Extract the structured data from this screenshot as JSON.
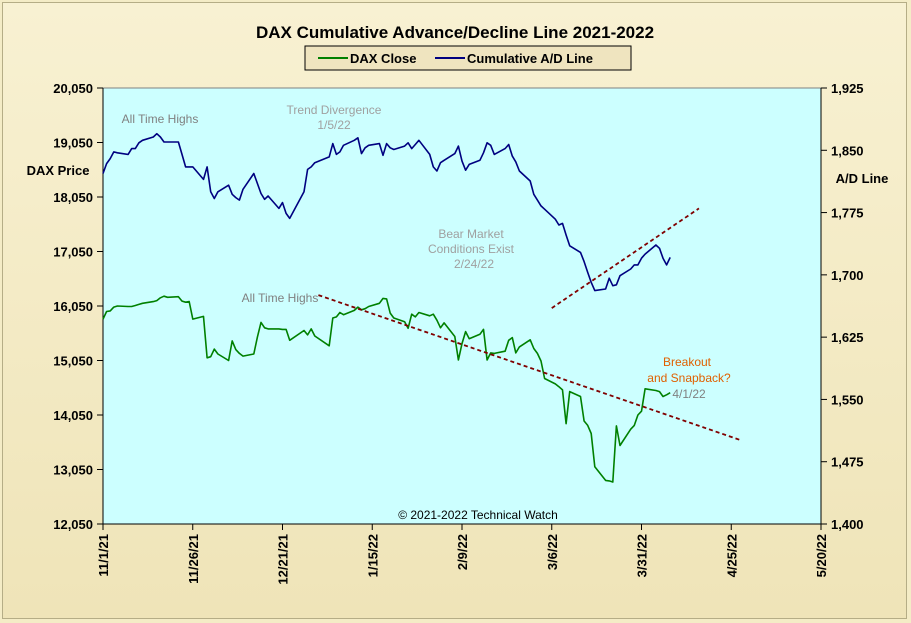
{
  "chart_data": {
    "type": "line",
    "title": "DAX Cumulative Advance/Decline Line 2021-2022",
    "ylabel_left": "DAX Price",
    "ylabel_right": "A/D Line",
    "ylim_left": [
      12050,
      20050
    ],
    "ylim_right": [
      1400,
      1925
    ],
    "yticks_left": [
      "20,050",
      "19,050",
      "18,050",
      "17,050",
      "16,050",
      "15,050",
      "14,050",
      "13,050",
      "12,050"
    ],
    "yticks_right": [
      "1,925",
      "1,850",
      "1,775",
      "1,700",
      "1,625",
      "1,550",
      "1,475",
      "1,400"
    ],
    "xticks": [
      "11/1/21",
      "11/26/21",
      "12/21/21",
      "1/15/22",
      "2/9/22",
      "3/6/22",
      "3/31/22",
      "4/25/22",
      "5/20/22"
    ],
    "grid": false,
    "legend_position": "top-center",
    "plot_background": "#ccffff",
    "series": [
      {
        "name": "DAX Close",
        "axis": "left",
        "color": "#008000",
        "x": [
          "2021-11-01",
          "2021-11-02",
          "2021-11-03",
          "2021-11-04",
          "2021-11-05",
          "2021-11-08",
          "2021-11-09",
          "2021-11-10",
          "2021-11-11",
          "2021-11-12",
          "2021-11-15",
          "2021-11-16",
          "2021-11-17",
          "2021-11-18",
          "2021-11-19",
          "2021-11-22",
          "2021-11-23",
          "2021-11-24",
          "2021-11-25",
          "2021-11-26",
          "2021-11-29",
          "2021-11-30",
          "2021-12-01",
          "2021-12-02",
          "2021-12-03",
          "2021-12-06",
          "2021-12-07",
          "2021-12-08",
          "2021-12-09",
          "2021-12-10",
          "2021-12-13",
          "2021-12-14",
          "2021-12-15",
          "2021-12-16",
          "2021-12-17",
          "2021-12-20",
          "2021-12-21",
          "2021-12-22",
          "2021-12-23",
          "2021-12-27",
          "2021-12-28",
          "2021-12-29",
          "2021-12-30",
          "2022-01-03",
          "2022-01-04",
          "2022-01-05",
          "2022-01-06",
          "2022-01-07",
          "2022-01-10",
          "2022-01-11",
          "2022-01-12",
          "2022-01-13",
          "2022-01-14",
          "2022-01-17",
          "2022-01-18",
          "2022-01-19",
          "2022-01-20",
          "2022-01-21",
          "2022-01-24",
          "2022-01-25",
          "2022-01-26",
          "2022-01-27",
          "2022-01-28",
          "2022-01-31",
          "2022-02-01",
          "2022-02-02",
          "2022-02-03",
          "2022-02-04",
          "2022-02-07",
          "2022-02-08",
          "2022-02-09",
          "2022-02-10",
          "2022-02-11",
          "2022-02-14",
          "2022-02-15",
          "2022-02-16",
          "2022-02-17",
          "2022-02-18",
          "2022-02-21",
          "2022-02-22",
          "2022-02-23",
          "2022-02-24",
          "2022-02-25",
          "2022-02-28",
          "2022-03-01",
          "2022-03-02",
          "2022-03-03",
          "2022-03-04",
          "2022-03-07",
          "2022-03-08",
          "2022-03-09",
          "2022-03-10",
          "2022-03-11",
          "2022-03-14",
          "2022-03-15",
          "2022-03-16",
          "2022-03-17",
          "2022-03-18",
          "2022-03-21",
          "2022-03-22",
          "2022-03-23",
          "2022-03-24",
          "2022-03-25",
          "2022-03-28",
          "2022-03-29",
          "2022-03-30",
          "2022-03-31",
          "2022-04-01",
          "2022-04-04",
          "2022-04-05",
          "2022-04-06",
          "2022-04-07",
          "2022-04-08"
        ],
        "values": [
          15810,
          15950,
          15960,
          16030,
          16050,
          16040,
          16040,
          16060,
          16080,
          16100,
          16130,
          16150,
          16200,
          16230,
          16210,
          16220,
          16140,
          16120,
          16130,
          15810,
          15860,
          15100,
          15120,
          15260,
          15170,
          15050,
          15410,
          15250,
          15180,
          15130,
          15170,
          15480,
          15750,
          15650,
          15630,
          15630,
          15620,
          15620,
          15420,
          15600,
          15520,
          15630,
          15500,
          15320,
          15830,
          15850,
          15930,
          15890,
          15970,
          16030,
          15980,
          16000,
          16040,
          16100,
          16190,
          16180,
          15920,
          15830,
          15760,
          15640,
          15900,
          15850,
          15930,
          15870,
          15900,
          15790,
          15650,
          15740,
          15490,
          15060,
          15360,
          15580,
          15450,
          15530,
          15620,
          15060,
          15190,
          15180,
          15220,
          15420,
          15470,
          15190,
          15300,
          15430,
          15270,
          15180,
          15040,
          14720,
          14620,
          14570,
          14510,
          13890,
          14480,
          14390,
          13940,
          13860,
          13710,
          13100,
          12850,
          12840,
          12820,
          13850,
          13490,
          13790,
          13860,
          14050,
          14120,
          14530,
          14500,
          14480,
          14390,
          14420,
          14460
        ],
        "values_note": "approximate, read from chart; final points continue to ~4/8/22"
      },
      {
        "name": "Cumulative A/D Line",
        "axis": "right",
        "color": "#000080",
        "x": [
          "2021-11-01",
          "2021-11-02",
          "2021-11-03",
          "2021-11-04",
          "2021-11-05",
          "2021-11-08",
          "2021-11-09",
          "2021-11-10",
          "2021-11-11",
          "2021-11-12",
          "2021-11-15",
          "2021-11-16",
          "2021-11-17",
          "2021-11-18",
          "2021-11-19",
          "2021-11-22",
          "2021-11-23",
          "2021-11-24",
          "2021-11-25",
          "2021-11-26",
          "2021-11-29",
          "2021-11-30",
          "2021-12-01",
          "2021-12-02",
          "2021-12-03",
          "2021-12-06",
          "2021-12-07",
          "2021-12-08",
          "2021-12-09",
          "2021-12-10",
          "2021-12-13",
          "2021-12-14",
          "2021-12-15",
          "2021-12-16",
          "2021-12-17",
          "2021-12-20",
          "2021-12-21",
          "2021-12-22",
          "2021-12-23",
          "2021-12-27",
          "2021-12-28",
          "2021-12-29",
          "2021-12-30",
          "2022-01-03",
          "2022-01-04",
          "2022-01-05",
          "2022-01-06",
          "2022-01-07",
          "2022-01-10",
          "2022-01-11",
          "2022-01-12",
          "2022-01-13",
          "2022-01-14",
          "2022-01-17",
          "2022-01-18",
          "2022-01-19",
          "2022-01-20",
          "2022-01-21",
          "2022-01-24",
          "2022-01-25",
          "2022-01-26",
          "2022-01-27",
          "2022-01-28",
          "2022-01-31",
          "2022-02-01",
          "2022-02-02",
          "2022-02-03",
          "2022-02-04",
          "2022-02-07",
          "2022-02-08",
          "2022-02-09",
          "2022-02-10",
          "2022-02-11",
          "2022-02-14",
          "2022-02-15",
          "2022-02-16",
          "2022-02-17",
          "2022-02-18",
          "2022-02-21",
          "2022-02-22",
          "2022-02-23",
          "2022-02-24",
          "2022-02-25",
          "2022-02-28",
          "2022-03-01",
          "2022-03-02",
          "2022-03-03",
          "2022-03-04",
          "2022-03-07",
          "2022-03-08",
          "2022-03-09",
          "2022-03-10",
          "2022-03-11",
          "2022-03-14",
          "2022-03-15",
          "2022-03-16",
          "2022-03-17",
          "2022-03-18",
          "2022-03-21",
          "2022-03-22",
          "2022-03-23",
          "2022-03-24",
          "2022-03-25",
          "2022-03-28",
          "2022-03-29",
          "2022-03-30",
          "2022-03-31",
          "2022-04-01",
          "2022-04-04",
          "2022-04-05",
          "2022-04-06",
          "2022-04-07",
          "2022-04-08"
        ],
        "values": [
          1822,
          1834,
          1840,
          1848,
          1847,
          1845,
          1852,
          1852,
          1859,
          1862,
          1866,
          1870,
          1866,
          1860,
          1860,
          1860,
          1845,
          1830,
          1830,
          1830,
          1815,
          1830,
          1800,
          1792,
          1800,
          1808,
          1797,
          1793,
          1790,
          1803,
          1822,
          1810,
          1798,
          1791,
          1795,
          1780,
          1787,
          1774,
          1768,
          1800,
          1827,
          1830,
          1835,
          1842,
          1858,
          1845,
          1848,
          1856,
          1862,
          1865,
          1846,
          1853,
          1856,
          1858,
          1844,
          1858,
          1853,
          1851,
          1855,
          1859,
          1852,
          1857,
          1862,
          1845,
          1830,
          1825,
          1835,
          1838,
          1846,
          1855,
          1837,
          1826,
          1833,
          1838,
          1847,
          1859,
          1856,
          1845,
          1852,
          1857,
          1843,
          1836,
          1825,
          1813,
          1797,
          1790,
          1783,
          1779,
          1767,
          1760,
          1762,
          1748,
          1735,
          1727,
          1716,
          1703,
          1691,
          1681,
          1683,
          1696,
          1687,
          1688,
          1699,
          1707,
          1712,
          1712,
          1720,
          1725,
          1736,
          1732,
          1720,
          1712,
          1721
        ],
        "values_note": "approximate, read from chart"
      }
    ],
    "annotations": [
      {
        "text": "All Time Highs",
        "color": "#808080"
      },
      {
        "text": "Trend Divergence",
        "color": "#a0a0a0"
      },
      {
        "text": "1/5/22",
        "color": "#a0a0a0"
      },
      {
        "text": "All Time Highs",
        "color": "#808080"
      },
      {
        "text": "Bear Market",
        "color": "#a0a0a0"
      },
      {
        "text": "Conditions Exist",
        "color": "#a0a0a0"
      },
      {
        "text": "2/24/22",
        "color": "#a0a0a0"
      },
      {
        "text": "Breakout",
        "color": "#e06000"
      },
      {
        "text": "and Snapback?",
        "color": "#e06000"
      },
      {
        "text": "4/1/22",
        "color": "#808080"
      }
    ],
    "trendlines": [
      {
        "axis": "left",
        "from": [
          "2021-12-31",
          16250
        ],
        "to": [
          "2022-04-28",
          13580
        ],
        "color": "#800000",
        "style": "dashed"
      },
      {
        "axis": "right",
        "from": [
          "2022-03-06",
          1660
        ],
        "to": [
          "2022-04-16",
          1780
        ],
        "color": "#800000",
        "style": "dashed"
      }
    ],
    "copyright": "© 2021-2022 Technical Watch"
  }
}
